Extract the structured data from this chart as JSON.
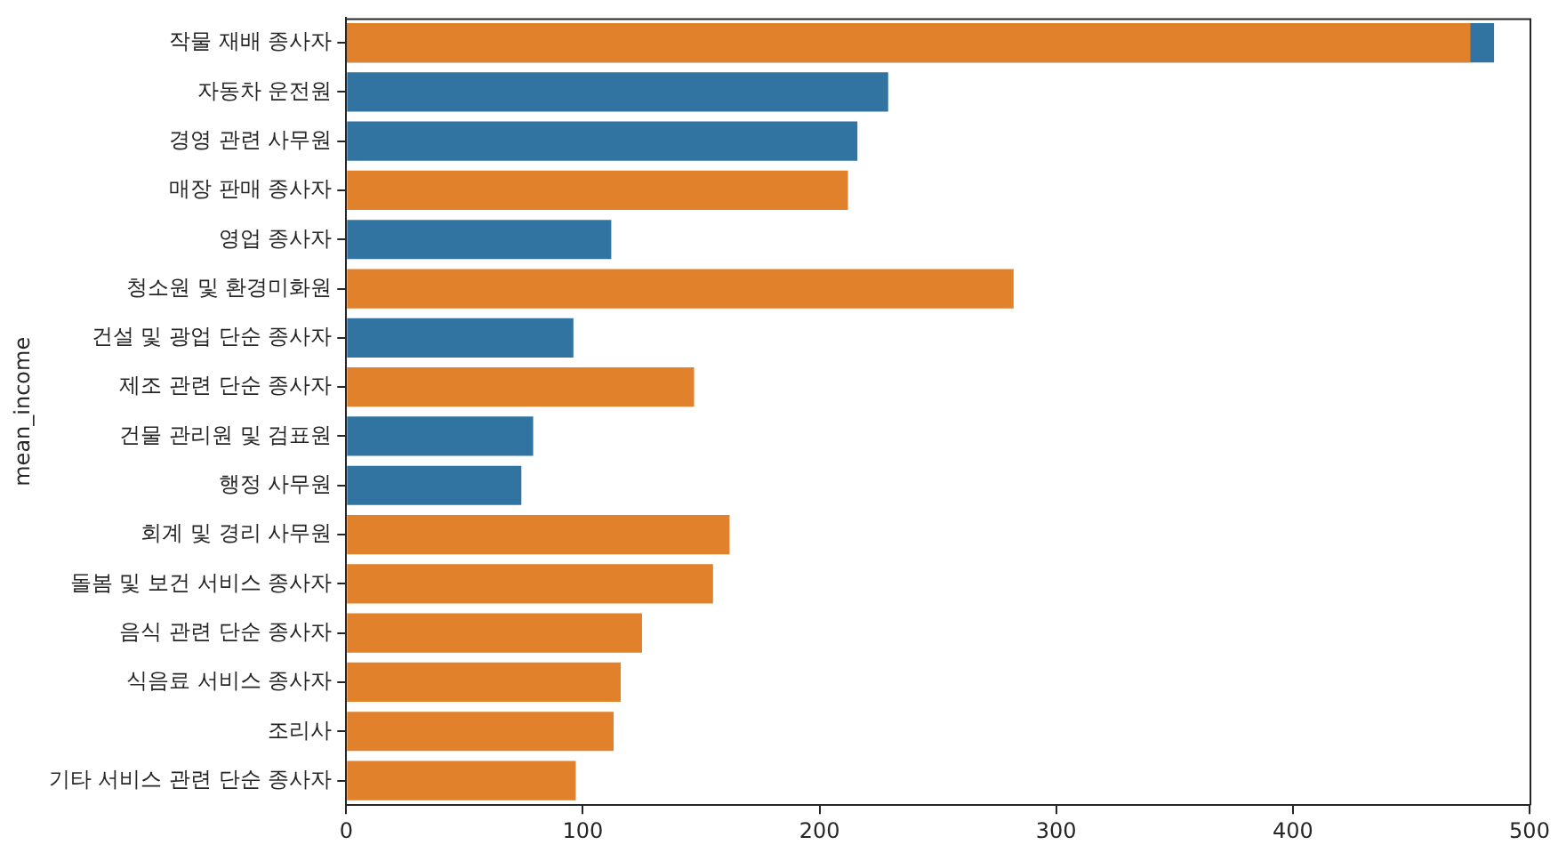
{
  "chart_data": {
    "type": "bar",
    "orientation": "horizontal",
    "ylabel": "mean_income",
    "categories": [
      "작물 재배 종사자",
      "자동차 운전원",
      "경영 관련 사무원",
      "매장 판매 종사자",
      "영업 종사자",
      "청소원 및 환경미화원",
      "건설 및 광업 단순 종사자",
      "제조 관련 단순 종사자",
      "건물 관리원 및 검표원",
      "행정 사무원",
      "회계 및 경리 사무원",
      "돌봄 및 보건 서비스 종사자",
      "음식 관련 단순 종사자",
      "식음료 서비스 종사자",
      "조리사",
      "기타 서비스 관련 단순 종사자"
    ],
    "series": [
      {
        "color": "#3274a1",
        "values": [
          485,
          229,
          216,
          null,
          112,
          null,
          96,
          null,
          79,
          74,
          null,
          null,
          null,
          null,
          null,
          null
        ]
      },
      {
        "color": "#e1812c",
        "values": [
          475,
          null,
          null,
          212,
          null,
          282,
          null,
          147,
          null,
          null,
          162,
          155,
          125,
          116,
          113,
          97
        ]
      }
    ],
    "xlim": [
      0,
      500
    ],
    "xticks": [
      0,
      100,
      200,
      300,
      400,
      500
    ],
    "grid": false,
    "legend": false
  }
}
